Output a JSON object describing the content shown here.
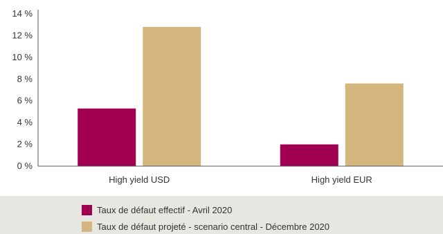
{
  "chart_data": {
    "type": "bar",
    "categories": [
      "High yield USD",
      "High yield EUR"
    ],
    "series": [
      {
        "name": "Taux de défaut effectif - Avril 2020",
        "values": [
          5.3,
          2.0
        ],
        "color": "#a0004f"
      },
      {
        "name": "Taux de défaut projeté - scenario central - Décembre 2020",
        "values": [
          12.8,
          7.6
        ],
        "color": "#d4b57e"
      }
    ],
    "y_ticks": [
      "0 %",
      "2 %",
      "4 %",
      "6 %",
      "8 %",
      "10 %",
      "12 %",
      "14 %"
    ],
    "ylim": [
      0,
      14
    ],
    "grid": false,
    "legend_position": "bottom"
  }
}
